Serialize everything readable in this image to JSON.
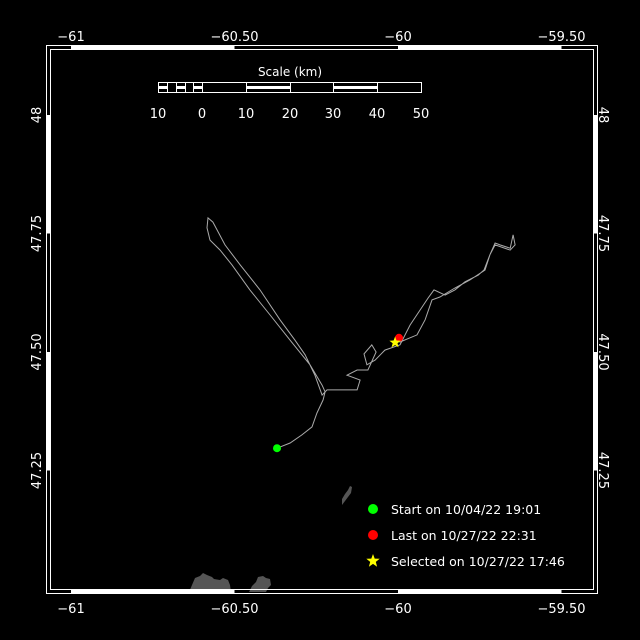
{
  "map": {
    "type": "track-map",
    "lon_range": [
      -61.07,
      -59.4
    ],
    "lat_range": [
      47.05,
      48.14
    ],
    "x_ticks": [
      {
        "value": -61,
        "label": "−61"
      },
      {
        "value": -60.5,
        "label": "−60.50"
      },
      {
        "value": -60,
        "label": "−60"
      },
      {
        "value": -59.5,
        "label": "−59.50"
      }
    ],
    "y_ticks": [
      {
        "value": 48,
        "label": "48"
      },
      {
        "value": 47.75,
        "label": "47.75"
      },
      {
        "value": 47.5,
        "label": "47.50"
      },
      {
        "value": 47.25,
        "label": "47.25"
      }
    ],
    "colors": {
      "background": "#000000",
      "frame": "#ffffff",
      "track": "#aaaaaa",
      "land": "#555555",
      "start": "#00ff00",
      "last": "#ff0000",
      "selected": "#ffff00"
    },
    "track": [
      [
        -60.37,
        47.297
      ],
      [
        -60.33,
        47.308
      ],
      [
        -60.294,
        47.325
      ],
      [
        -60.263,
        47.342
      ],
      [
        -60.248,
        47.371
      ],
      [
        -60.229,
        47.399
      ],
      [
        -60.223,
        47.416
      ],
      [
        -60.232,
        47.43
      ],
      [
        -60.269,
        47.473
      ],
      [
        -60.33,
        47.525
      ],
      [
        -60.391,
        47.578
      ],
      [
        -60.453,
        47.631
      ],
      [
        -60.508,
        47.684
      ],
      [
        -60.544,
        47.715
      ],
      [
        -60.575,
        47.736
      ],
      [
        -60.584,
        47.762
      ],
      [
        -60.581,
        47.783
      ],
      [
        -60.566,
        47.774
      ],
      [
        -60.529,
        47.726
      ],
      [
        -60.483,
        47.684
      ],
      [
        -60.422,
        47.631
      ],
      [
        -60.361,
        47.568
      ],
      [
        -60.315,
        47.525
      ],
      [
        -60.284,
        47.494
      ],
      [
        -60.254,
        47.451
      ],
      [
        -60.232,
        47.409
      ],
      [
        -60.217,
        47.42
      ],
      [
        -60.168,
        47.42
      ],
      [
        -60.125,
        47.42
      ],
      [
        -60.116,
        47.441
      ],
      [
        -60.156,
        47.451
      ],
      [
        -60.125,
        47.462
      ],
      [
        -60.092,
        47.462
      ],
      [
        -60.067,
        47.5
      ],
      [
        -60.08,
        47.515
      ],
      [
        -60.104,
        47.496
      ],
      [
        -60.095,
        47.473
      ],
      [
        -60.07,
        47.483
      ],
      [
        -60.04,
        47.504
      ],
      [
        -59.994,
        47.515
      ],
      [
        -59.963,
        47.557
      ],
      [
        -59.908,
        47.614
      ],
      [
        -59.89,
        47.631
      ],
      [
        -59.856,
        47.62
      ],
      [
        -59.826,
        47.631
      ],
      [
        -59.795,
        47.648
      ],
      [
        -59.755,
        47.662
      ],
      [
        -59.737,
        47.673
      ],
      [
        -59.719,
        47.705
      ],
      [
        -59.703,
        47.73
      ],
      [
        -59.688,
        47.726
      ],
      [
        -59.657,
        47.719
      ],
      [
        -59.648,
        47.747
      ],
      [
        -59.642,
        47.726
      ],
      [
        -59.657,
        47.715
      ],
      [
        -59.703,
        47.726
      ],
      [
        -59.719,
        47.705
      ],
      [
        -59.734,
        47.673
      ],
      [
        -59.78,
        47.652
      ],
      [
        -59.826,
        47.635
      ],
      [
        -59.872,
        47.616
      ],
      [
        -59.896,
        47.61
      ],
      [
        -59.917,
        47.568
      ],
      [
        -59.942,
        47.536
      ],
      [
        -59.994,
        47.521
      ],
      [
        -59.997,
        47.53
      ]
    ],
    "markers": {
      "start": {
        "lon": -60.37,
        "lat": 47.297
      },
      "last": {
        "lon": -59.997,
        "lat": 47.53
      },
      "selected": {
        "lon": -60.009,
        "lat": 47.52
      }
    }
  },
  "scale_bar": {
    "title": "Scale (km)",
    "labels": [
      "10",
      "0",
      "10",
      "20",
      "30",
      "40",
      "50"
    ]
  },
  "legend": {
    "items": [
      {
        "symbol": "circle",
        "color": "#00ff00",
        "label": "Start on 10/04/22 19:01"
      },
      {
        "symbol": "circle",
        "color": "#ff0000",
        "label": "Last on 10/27/22 22:31"
      },
      {
        "symbol": "star",
        "color": "#ffff00",
        "label": "Selected on 10/27/22 17:46"
      }
    ]
  }
}
